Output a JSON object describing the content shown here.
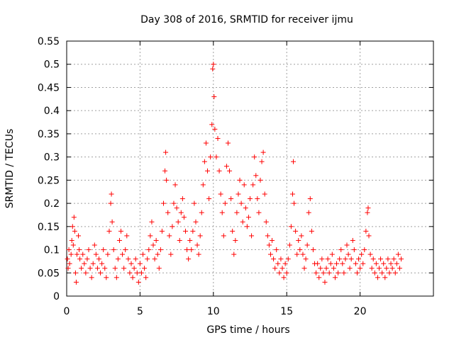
{
  "chart_data": {
    "type": "scatter",
    "title": "Day 308 of 2016, SRMTID for receiver ijmu",
    "xlabel": "GPS time / hours",
    "ylabel": "SRMTID / TECUs",
    "xlim": [
      0,
      25
    ],
    "ylim": [
      0,
      0.55
    ],
    "xticks": [
      0,
      5,
      10,
      15,
      20
    ],
    "xtick_labels": [
      "0",
      "5",
      "10",
      "15",
      "20"
    ],
    "yticks": [
      0,
      0.05,
      0.1,
      0.15,
      0.2,
      0.25,
      0.3,
      0.35,
      0.4,
      0.45,
      0.5,
      0.55
    ],
    "ytick_labels": [
      "0",
      "0.05",
      "0.1",
      "0.15",
      "0.2",
      "0.25",
      "0.3",
      "0.35",
      "0.4",
      "0.45",
      "0.5",
      "0.55"
    ],
    "grid": true,
    "marker": "+",
    "color": "#ff0000",
    "series": [
      {
        "name": "SRMTID",
        "points": [
          [
            0.05,
            0.08
          ],
          [
            0.1,
            0.06
          ],
          [
            0.15,
            0.1
          ],
          [
            0.2,
            0.07
          ],
          [
            0.3,
            0.09
          ],
          [
            0.35,
            0.12
          ],
          [
            0.4,
            0.15
          ],
          [
            0.45,
            0.11
          ],
          [
            0.5,
            0.17
          ],
          [
            0.55,
            0.14
          ],
          [
            0.6,
            0.05
          ],
          [
            0.65,
            0.03
          ],
          [
            0.7,
            0.09
          ],
          [
            0.8,
            0.13
          ],
          [
            0.85,
            0.1
          ],
          [
            0.9,
            0.08
          ],
          [
            1.0,
            0.06
          ],
          [
            1.1,
            0.09
          ],
          [
            1.2,
            0.07
          ],
          [
            1.3,
            0.05
          ],
          [
            1.4,
            0.08
          ],
          [
            1.5,
            0.1
          ],
          [
            1.6,
            0.06
          ],
          [
            1.7,
            0.04
          ],
          [
            1.8,
            0.07
          ],
          [
            1.9,
            0.11
          ],
          [
            2.0,
            0.09
          ],
          [
            2.1,
            0.06
          ],
          [
            2.2,
            0.08
          ],
          [
            2.3,
            0.05
          ],
          [
            2.4,
            0.07
          ],
          [
            2.5,
            0.1
          ],
          [
            2.6,
            0.06
          ],
          [
            2.7,
            0.04
          ],
          [
            2.8,
            0.09
          ],
          [
            2.9,
            0.14
          ],
          [
            3.0,
            0.2
          ],
          [
            3.05,
            0.22
          ],
          [
            3.1,
            0.16
          ],
          [
            3.2,
            0.1
          ],
          [
            3.3,
            0.06
          ],
          [
            3.4,
            0.04
          ],
          [
            3.5,
            0.08
          ],
          [
            3.6,
            0.12
          ],
          [
            3.7,
            0.14
          ],
          [
            3.8,
            0.09
          ],
          [
            3.9,
            0.06
          ],
          [
            4.0,
            0.1
          ],
          [
            4.1,
            0.13
          ],
          [
            4.2,
            0.08
          ],
          [
            4.3,
            0.05
          ],
          [
            4.4,
            0.07
          ],
          [
            4.5,
            0.04
          ],
          [
            4.6,
            0.06
          ],
          [
            4.7,
            0.08
          ],
          [
            4.8,
            0.05
          ],
          [
            4.9,
            0.03
          ],
          [
            5.0,
            0.07
          ],
          [
            5.1,
            0.05
          ],
          [
            5.2,
            0.09
          ],
          [
            5.3,
            0.06
          ],
          [
            5.4,
            0.04
          ],
          [
            5.5,
            0.08
          ],
          [
            5.6,
            0.1
          ],
          [
            5.7,
            0.13
          ],
          [
            5.8,
            0.16
          ],
          [
            5.9,
            0.11
          ],
          [
            6.0,
            0.08
          ],
          [
            6.1,
            0.12
          ],
          [
            6.2,
            0.09
          ],
          [
            6.3,
            0.06
          ],
          [
            6.4,
            0.1
          ],
          [
            6.5,
            0.14
          ],
          [
            6.6,
            0.2
          ],
          [
            6.7,
            0.27
          ],
          [
            6.75,
            0.31
          ],
          [
            6.8,
            0.25
          ],
          [
            6.9,
            0.18
          ],
          [
            7.0,
            0.13
          ],
          [
            7.1,
            0.09
          ],
          [
            7.2,
            0.15
          ],
          [
            7.3,
            0.2
          ],
          [
            7.4,
            0.24
          ],
          [
            7.5,
            0.19
          ],
          [
            7.6,
            0.16
          ],
          [
            7.7,
            0.12
          ],
          [
            7.8,
            0.18
          ],
          [
            7.9,
            0.21
          ],
          [
            8.0,
            0.17
          ],
          [
            8.1,
            0.14
          ],
          [
            8.2,
            0.1
          ],
          [
            8.3,
            0.08
          ],
          [
            8.4,
            0.12
          ],
          [
            8.5,
            0.1
          ],
          [
            8.6,
            0.14
          ],
          [
            8.7,
            0.2
          ],
          [
            8.8,
            0.16
          ],
          [
            8.9,
            0.11
          ],
          [
            9.0,
            0.09
          ],
          [
            9.1,
            0.13
          ],
          [
            9.2,
            0.18
          ],
          [
            9.3,
            0.24
          ],
          [
            9.4,
            0.29
          ],
          [
            9.5,
            0.33
          ],
          [
            9.6,
            0.27
          ],
          [
            9.7,
            0.21
          ],
          [
            9.8,
            0.3
          ],
          [
            9.9,
            0.37
          ],
          [
            9.95,
            0.49
          ],
          [
            10.0,
            0.5
          ],
          [
            10.05,
            0.43
          ],
          [
            10.1,
            0.36
          ],
          [
            10.2,
            0.3
          ],
          [
            10.3,
            0.34
          ],
          [
            10.4,
            0.27
          ],
          [
            10.5,
            0.22
          ],
          [
            10.6,
            0.18
          ],
          [
            10.7,
            0.13
          ],
          [
            10.8,
            0.2
          ],
          [
            10.9,
            0.28
          ],
          [
            11.0,
            0.33
          ],
          [
            11.1,
            0.27
          ],
          [
            11.2,
            0.21
          ],
          [
            11.3,
            0.14
          ],
          [
            11.4,
            0.09
          ],
          [
            11.5,
            0.12
          ],
          [
            11.6,
            0.18
          ],
          [
            11.7,
            0.22
          ],
          [
            11.8,
            0.25
          ],
          [
            11.9,
            0.2
          ],
          [
            12.0,
            0.16
          ],
          [
            12.1,
            0.24
          ],
          [
            12.2,
            0.19
          ],
          [
            12.3,
            0.15
          ],
          [
            12.4,
            0.17
          ],
          [
            12.5,
            0.21
          ],
          [
            12.6,
            0.13
          ],
          [
            12.7,
            0.24
          ],
          [
            12.8,
            0.3
          ],
          [
            12.9,
            0.26
          ],
          [
            13.0,
            0.21
          ],
          [
            13.1,
            0.18
          ],
          [
            13.2,
            0.25
          ],
          [
            13.3,
            0.29
          ],
          [
            13.4,
            0.31
          ],
          [
            13.5,
            0.22
          ],
          [
            13.6,
            0.16
          ],
          [
            13.7,
            0.13
          ],
          [
            13.8,
            0.11
          ],
          [
            13.9,
            0.09
          ],
          [
            14.0,
            0.12
          ],
          [
            14.1,
            0.08
          ],
          [
            14.2,
            0.06
          ],
          [
            14.3,
            0.1
          ],
          [
            14.4,
            0.07
          ],
          [
            14.5,
            0.05
          ],
          [
            14.6,
            0.08
          ],
          [
            14.7,
            0.06
          ],
          [
            14.8,
            0.04
          ],
          [
            14.9,
            0.07
          ],
          [
            15.0,
            0.05
          ],
          [
            15.1,
            0.08
          ],
          [
            15.2,
            0.11
          ],
          [
            15.3,
            0.15
          ],
          [
            15.4,
            0.22
          ],
          [
            15.45,
            0.29
          ],
          [
            15.5,
            0.2
          ],
          [
            15.6,
            0.14
          ],
          [
            15.7,
            0.09
          ],
          [
            15.8,
            0.12
          ],
          [
            15.9,
            0.1
          ],
          [
            16.0,
            0.13
          ],
          [
            16.1,
            0.09
          ],
          [
            16.2,
            0.06
          ],
          [
            16.3,
            0.08
          ],
          [
            16.4,
            0.11
          ],
          [
            16.5,
            0.18
          ],
          [
            16.6,
            0.21
          ],
          [
            16.7,
            0.14
          ],
          [
            16.8,
            0.1
          ],
          [
            16.9,
            0.07
          ],
          [
            17.0,
            0.05
          ],
          [
            17.1,
            0.07
          ],
          [
            17.2,
            0.04
          ],
          [
            17.3,
            0.06
          ],
          [
            17.4,
            0.08
          ],
          [
            17.5,
            0.05
          ],
          [
            17.6,
            0.03
          ],
          [
            17.7,
            0.06
          ],
          [
            17.8,
            0.08
          ],
          [
            17.9,
            0.05
          ],
          [
            18.0,
            0.07
          ],
          [
            18.1,
            0.09
          ],
          [
            18.2,
            0.06
          ],
          [
            18.3,
            0.04
          ],
          [
            18.4,
            0.07
          ],
          [
            18.5,
            0.05
          ],
          [
            18.6,
            0.08
          ],
          [
            18.7,
            0.1
          ],
          [
            18.8,
            0.07
          ],
          [
            18.9,
            0.05
          ],
          [
            19.0,
            0.08
          ],
          [
            19.1,
            0.11
          ],
          [
            19.2,
            0.09
          ],
          [
            19.3,
            0.06
          ],
          [
            19.4,
            0.08
          ],
          [
            19.5,
            0.12
          ],
          [
            19.6,
            0.1
          ],
          [
            19.7,
            0.07
          ],
          [
            19.8,
            0.05
          ],
          [
            19.9,
            0.08
          ],
          [
            20.0,
            0.06
          ],
          [
            20.1,
            0.09
          ],
          [
            20.2,
            0.07
          ],
          [
            20.3,
            0.1
          ],
          [
            20.4,
            0.14
          ],
          [
            20.5,
            0.18
          ],
          [
            20.55,
            0.19
          ],
          [
            20.6,
            0.13
          ],
          [
            20.7,
            0.09
          ],
          [
            20.8,
            0.06
          ],
          [
            20.9,
            0.08
          ],
          [
            21.0,
            0.05
          ],
          [
            21.1,
            0.07
          ],
          [
            21.2,
            0.04
          ],
          [
            21.3,
            0.06
          ],
          [
            21.4,
            0.08
          ],
          [
            21.5,
            0.05
          ],
          [
            21.6,
            0.07
          ],
          [
            21.7,
            0.04
          ],
          [
            21.8,
            0.06
          ],
          [
            21.9,
            0.08
          ],
          [
            22.0,
            0.05
          ],
          [
            22.1,
            0.07
          ],
          [
            22.2,
            0.06
          ],
          [
            22.3,
            0.08
          ],
          [
            22.4,
            0.05
          ],
          [
            22.5,
            0.07
          ],
          [
            22.6,
            0.09
          ],
          [
            22.7,
            0.06
          ],
          [
            22.8,
            0.08
          ]
        ]
      }
    ]
  }
}
